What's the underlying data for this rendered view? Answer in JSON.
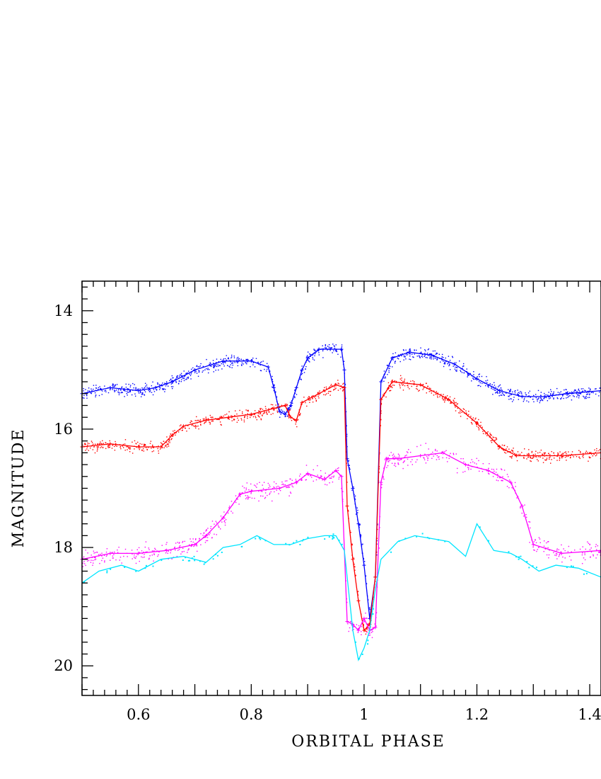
{
  "chart_data": {
    "type": "line",
    "title": "",
    "xlabel": "ORBITAL PHASE",
    "ylabel": "MAGNITUDE",
    "xlim": [
      0.5,
      1.42
    ],
    "ylim": [
      20.5,
      13.5
    ],
    "y_inverted": true,
    "grid": false,
    "x_ticks": [
      0.6,
      0.8,
      1.0,
      1.2,
      1.4
    ],
    "x_tick_labels": [
      "0.6",
      "0.8",
      "1",
      "1.2",
      "1.4"
    ],
    "y_ticks": [
      14,
      16,
      18,
      20
    ],
    "y_tick_labels": [
      "14",
      "16",
      "18",
      "20"
    ],
    "series": [
      {
        "color": "#0000ff",
        "x": [
          0.5,
          0.55,
          0.6,
          0.63,
          0.66,
          0.7,
          0.75,
          0.8,
          0.83,
          0.84,
          0.85,
          0.86,
          0.87,
          0.88,
          0.89,
          0.9,
          0.92,
          0.94,
          0.96,
          0.965,
          0.97,
          0.98,
          0.99,
          1.0,
          1.01,
          1.02,
          1.03,
          1.05,
          1.08,
          1.12,
          1.16,
          1.2,
          1.24,
          1.28,
          1.32,
          1.36,
          1.42
        ],
        "y": [
          15.4,
          15.3,
          15.35,
          15.3,
          15.2,
          15.0,
          14.85,
          14.85,
          14.95,
          15.3,
          15.7,
          15.75,
          15.6,
          15.3,
          15.0,
          14.8,
          14.65,
          14.65,
          14.65,
          15.0,
          16.5,
          17.0,
          17.6,
          18.3,
          19.2,
          18.5,
          15.2,
          14.8,
          14.7,
          14.75,
          14.9,
          15.15,
          15.35,
          15.45,
          15.45,
          15.4,
          15.35
        ]
      },
      {
        "color": "#ff0000",
        "x": [
          0.5,
          0.55,
          0.6,
          0.64,
          0.66,
          0.68,
          0.72,
          0.76,
          0.8,
          0.84,
          0.86,
          0.87,
          0.88,
          0.89,
          0.92,
          0.95,
          0.965,
          0.97,
          0.98,
          0.99,
          1.0,
          1.01,
          1.02,
          1.03,
          1.05,
          1.1,
          1.15,
          1.2,
          1.24,
          1.27,
          1.3,
          1.35,
          1.42
        ],
        "y": [
          16.3,
          16.25,
          16.3,
          16.3,
          16.1,
          15.95,
          15.85,
          15.8,
          15.75,
          15.65,
          15.6,
          15.8,
          15.85,
          15.55,
          15.4,
          15.25,
          15.3,
          17.3,
          18.2,
          18.9,
          19.4,
          19.3,
          18.5,
          15.5,
          15.2,
          15.25,
          15.5,
          15.9,
          16.3,
          16.45,
          16.45,
          16.45,
          16.4
        ]
      },
      {
        "color": "#ff00ff",
        "x": [
          0.5,
          0.55,
          0.6,
          0.65,
          0.7,
          0.72,
          0.75,
          0.78,
          0.8,
          0.85,
          0.88,
          0.9,
          0.93,
          0.95,
          0.96,
          0.97,
          0.98,
          0.99,
          1.0,
          1.01,
          1.02,
          1.03,
          1.04,
          1.06,
          1.1,
          1.14,
          1.18,
          1.22,
          1.26,
          1.28,
          1.3,
          1.35,
          1.42
        ],
        "y": [
          18.2,
          18.1,
          18.1,
          18.05,
          17.95,
          17.8,
          17.5,
          17.1,
          17.05,
          17.0,
          16.9,
          16.75,
          16.85,
          16.7,
          16.8,
          19.25,
          19.3,
          19.4,
          19.2,
          19.4,
          19.35,
          16.9,
          16.5,
          16.5,
          16.45,
          16.4,
          16.6,
          16.7,
          16.9,
          17.3,
          17.95,
          18.1,
          18.05
        ]
      },
      {
        "color": "#00e5ff",
        "x": [
          0.5,
          0.53,
          0.57,
          0.6,
          0.64,
          0.68,
          0.72,
          0.75,
          0.78,
          0.81,
          0.84,
          0.87,
          0.9,
          0.93,
          0.95,
          0.965,
          0.98,
          0.99,
          1.0,
          1.01,
          1.02,
          1.03,
          1.06,
          1.09,
          1.12,
          1.15,
          1.18,
          1.2,
          1.23,
          1.26,
          1.28,
          1.31,
          1.34,
          1.38,
          1.42
        ],
        "y": [
          18.6,
          18.4,
          18.3,
          18.4,
          18.2,
          18.15,
          18.25,
          18.0,
          17.95,
          17.8,
          17.95,
          17.95,
          17.85,
          17.8,
          17.8,
          18.05,
          19.4,
          19.9,
          19.7,
          19.4,
          18.7,
          18.2,
          17.9,
          17.8,
          17.85,
          17.9,
          18.15,
          17.6,
          18.05,
          18.1,
          18.2,
          18.4,
          18.3,
          18.35,
          18.5
        ]
      }
    ]
  }
}
